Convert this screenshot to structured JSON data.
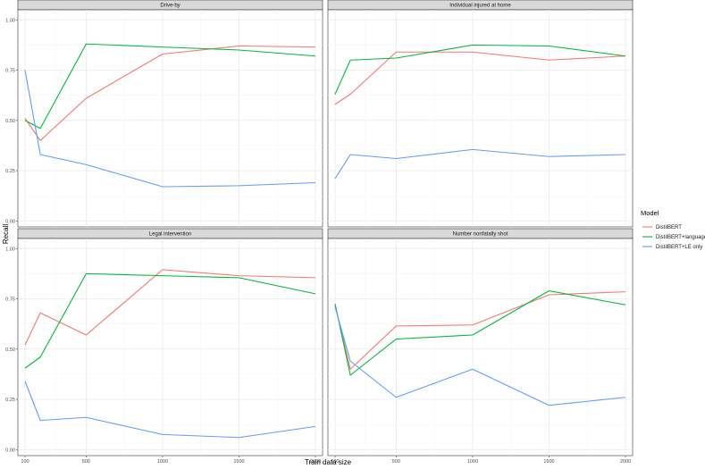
{
  "chart_data": {
    "type": "line",
    "title": "",
    "xlabel": "Train data size",
    "ylabel": "Recall",
    "x": [
      100,
      200,
      500,
      1000,
      1500,
      2000
    ],
    "x_ticks": [
      100,
      500,
      1000,
      1500,
      2000
    ],
    "y_ticks": [
      0.0,
      0.25,
      0.5,
      0.75,
      1.0
    ],
    "y_tick_labels": [
      "0.00",
      "0.25",
      "0.50",
      "0.75",
      "1.00"
    ],
    "ylim": [
      -0.03,
      1.05
    ],
    "grid": true,
    "legend": {
      "title": "Model",
      "position": "right",
      "entries": [
        {
          "label": "DistilBERT",
          "color": "#F8766D"
        },
        {
          "label": "DistilBERT+language",
          "color": "#00BA38"
        },
        {
          "label": "DistilBERT+LE only",
          "color": "#619CFF"
        }
      ]
    },
    "panels": [
      {
        "title": "Drive-by",
        "series": [
          {
            "name": "DistilBERT",
            "color": "#F8766D",
            "values": [
              0.51,
              0.4,
              0.61,
              0.83,
              0.87,
              0.865
            ]
          },
          {
            "name": "DistilBERT+language",
            "color": "#00BA38",
            "values": [
              0.5,
              0.46,
              0.88,
              0.865,
              0.85,
              0.82
            ]
          },
          {
            "name": "DistilBERT+LE only",
            "color": "#619CFF",
            "values": [
              0.75,
              0.33,
              0.28,
              0.17,
              0.175,
              0.19
            ]
          }
        ]
      },
      {
        "title": "Individual injured at home",
        "series": [
          {
            "name": "DistilBERT",
            "color": "#F8766D",
            "values": [
              0.58,
              0.63,
              0.84,
              0.84,
              0.8,
              0.82
            ]
          },
          {
            "name": "DistilBERT+language",
            "color": "#00BA38",
            "values": [
              0.63,
              0.8,
              0.81,
              0.875,
              0.87,
              0.82
            ]
          },
          {
            "name": "DistilBERT+LE only",
            "color": "#619CFF",
            "values": [
              0.21,
              0.33,
              0.31,
              0.355,
              0.32,
              0.33
            ]
          }
        ]
      },
      {
        "title": "Legal intervention",
        "series": [
          {
            "name": "DistilBERT",
            "color": "#F8766D",
            "values": [
              0.52,
              0.68,
              0.57,
              0.895,
              0.865,
              0.855
            ]
          },
          {
            "name": "DistilBERT+language",
            "color": "#00BA38",
            "values": [
              0.405,
              0.46,
              0.875,
              0.865,
              0.855,
              0.775
            ]
          },
          {
            "name": "DistilBERT+LE only",
            "color": "#619CFF",
            "values": [
              0.34,
              0.145,
              0.16,
              0.075,
              0.06,
              0.115
            ]
          }
        ]
      },
      {
        "title": "Number nonfatally shot",
        "series": [
          {
            "name": "DistilBERT",
            "color": "#F8766D",
            "values": [
              0.72,
              0.4,
              0.615,
              0.62,
              0.77,
              0.785
            ]
          },
          {
            "name": "DistilBERT+language",
            "color": "#00BA38",
            "values": [
              0.725,
              0.37,
              0.55,
              0.57,
              0.79,
              0.72
            ]
          },
          {
            "name": "DistilBERT+LE only",
            "color": "#619CFF",
            "values": [
              0.71,
              0.44,
              0.26,
              0.4,
              0.22,
              0.26
            ]
          }
        ]
      }
    ]
  }
}
